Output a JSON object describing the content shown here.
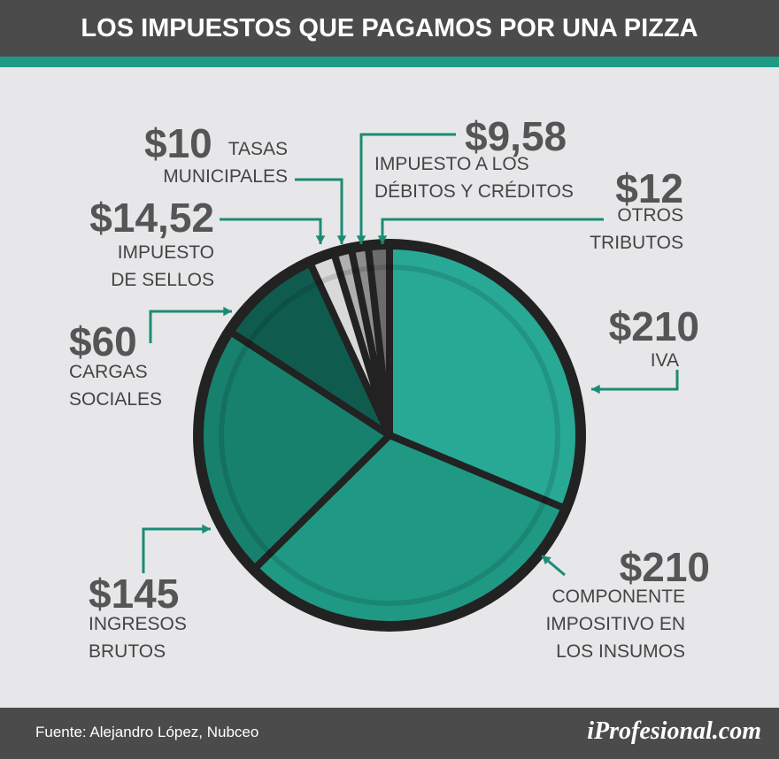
{
  "chart_data": {
    "type": "pie",
    "title": "LOS IMPUESTOS QUE PAGAMOS POR UNA PIZZA",
    "categories": [
      "IVA",
      "COMPONENTE\nIMPOSITIVO EN\nLOS INSUMOS",
      "INGRESOS\nBRUTOS",
      "CARGAS\nSOCIALES",
      "IMPUESTO\nDE SELLOS",
      "TASAS\nMUNICIPALES",
      "IMPUESTO A LOS\nDÉBITOS Y CRÉDITOS",
      "OTROS\nTRIBUTOS"
    ],
    "values": [
      210,
      210,
      145,
      60,
      14.52,
      10,
      9.58,
      12
    ],
    "value_labels": [
      "$210",
      "$210",
      "$145",
      "$60",
      "$14,52",
      "$10",
      "$9,58",
      "$12"
    ],
    "colors": [
      "#27a996",
      "#1f9984",
      "#17816e",
      "#0f5c4f",
      "#d9d9d9",
      "#b0b0b0",
      "#8d8d8d",
      "#6c6c6c"
    ],
    "source": "Fuente: Alejandro López, Nubceo",
    "brand": "iProfesional.com"
  }
}
